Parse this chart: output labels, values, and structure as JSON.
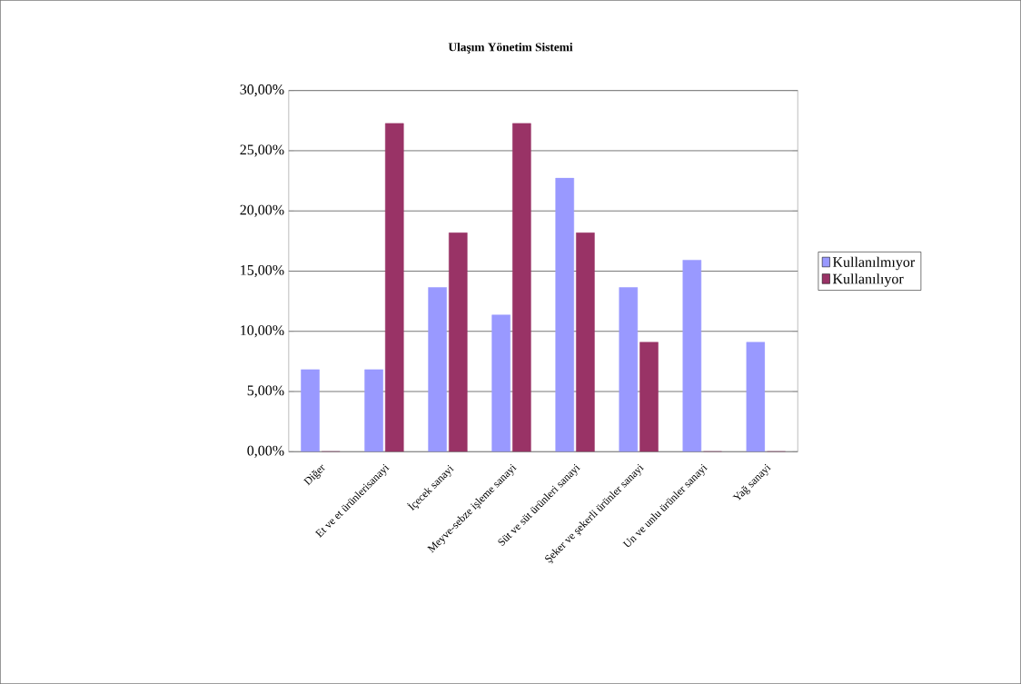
{
  "chart_data": {
    "type": "bar",
    "title": "Ulaşım Yönetim Sistemi",
    "categories": [
      "Diğer",
      "Et ve et ürünlerisanayi",
      "İçecek sanayi",
      "Meyve-sebze işleme sanayi",
      "Süt ve  süt ürünleri sanayi",
      "Şeker ve şekerli ürünler sanayi",
      "Un ve unlu ürünler sanayi",
      "Yağ sanayi"
    ],
    "series": [
      {
        "name": "Kullanılmıyor",
        "color": "#9999ff",
        "values": [
          6.82,
          6.82,
          13.64,
          11.36,
          22.73,
          13.64,
          15.91,
          9.09
        ]
      },
      {
        "name": "Kullanılıyor",
        "color": "#993366",
        "values": [
          0,
          27.27,
          18.18,
          27.27,
          18.18,
          9.09,
          0,
          0
        ]
      }
    ],
    "ylim": [
      0,
      30
    ],
    "yticks": [
      {
        "value": 0,
        "label": "0,00%"
      },
      {
        "value": 5,
        "label": "5,00%"
      },
      {
        "value": 10,
        "label": "10,00%"
      },
      {
        "value": 15,
        "label": "15,00%"
      },
      {
        "value": 20,
        "label": "20,00%"
      },
      {
        "value": 25,
        "label": "25,00%"
      },
      {
        "value": 30,
        "label": "30,00%"
      }
    ],
    "grid": "y",
    "legend": "right"
  }
}
